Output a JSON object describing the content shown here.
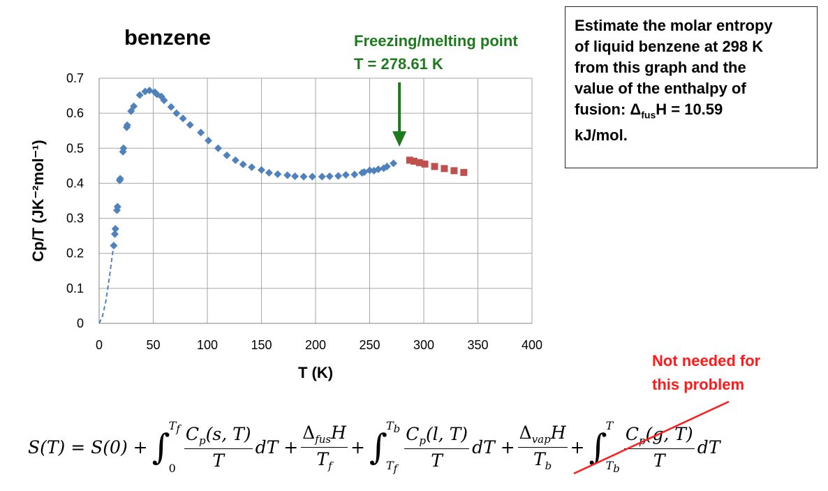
{
  "chart_data": {
    "type": "scatter",
    "title": "benzene",
    "xlabel": "T (K)",
    "ylabel": "Cp/T (JK⁻²mol⁻¹)",
    "xlim": [
      0,
      400
    ],
    "ylim": [
      0,
      0.7
    ],
    "x_ticks": [
      "0",
      "50",
      "100",
      "150",
      "200",
      "250",
      "300",
      "350",
      "400"
    ],
    "y_ticks": [
      "0",
      "0.1",
      "0.2",
      "0.3",
      "0.4",
      "0.5",
      "0.6",
      "0.7"
    ],
    "grid": true,
    "series": [
      {
        "marker": "diamond",
        "color": "#4f81bd",
        "x": [
          13.5,
          14.5,
          15,
          16.5,
          17,
          19,
          19.5,
          22,
          22.5,
          25.5,
          26,
          29.5,
          32,
          37.5,
          42.5,
          46.5,
          51.5,
          53.5,
          57.5,
          60,
          66.5,
          71.5,
          77.5,
          84,
          94,
          101,
          110,
          118,
          126,
          133,
          141,
          150,
          157,
          165,
          174,
          181,
          189,
          197,
          206,
          213,
          221,
          228,
          236,
          243,
          245,
          250,
          254,
          258,
          263,
          266,
          272
        ],
        "y": [
          0.222,
          0.255,
          0.27,
          0.323,
          0.333,
          0.408,
          0.413,
          0.49,
          0.5,
          0.56,
          0.566,
          0.606,
          0.62,
          0.652,
          0.662,
          0.665,
          0.66,
          0.654,
          0.648,
          0.637,
          0.618,
          0.6,
          0.585,
          0.567,
          0.545,
          0.522,
          0.5,
          0.48,
          0.466,
          0.454,
          0.446,
          0.438,
          0.43,
          0.426,
          0.423,
          0.42,
          0.419,
          0.419,
          0.419,
          0.42,
          0.421,
          0.424,
          0.425,
          0.43,
          0.432,
          0.437,
          0.436,
          0.44,
          0.443,
          0.448,
          0.457
        ]
      },
      {
        "marker": "square",
        "color": "#c0504d",
        "x": [
          287,
          291,
          296,
          301,
          310,
          319,
          328,
          337
        ],
        "y": [
          0.466,
          0.463,
          0.459,
          0.455,
          0.448,
          0.442,
          0.436,
          0.431
        ]
      }
    ],
    "extrapolation": {
      "style": "dashed",
      "color": "#4f81bd",
      "x": [
        0,
        3,
        6,
        9,
        12,
        13.5
      ],
      "y": [
        0.0,
        0.02,
        0.06,
        0.12,
        0.19,
        0.222
      ]
    }
  },
  "annotations": {
    "freeze_line1": "Freezing/melting point",
    "freeze_line2": "T = 278.61 K",
    "freeze_color": "#1e7a1e",
    "not_needed_line1": "Not needed for",
    "not_needed_line2": "this problem",
    "not_needed_color": "#ff1a1a"
  },
  "task": {
    "line1": "Estimate the molar entropy",
    "line2": "of liquid benzene at 298 K",
    "line3": "from this graph and the",
    "line4": "value of the enthalpy of",
    "line5_pre": "fusion: Δ",
    "line5_sub": "fus",
    "line5_post": "H = 10.59",
    "line6": "kJ/mol."
  }
}
